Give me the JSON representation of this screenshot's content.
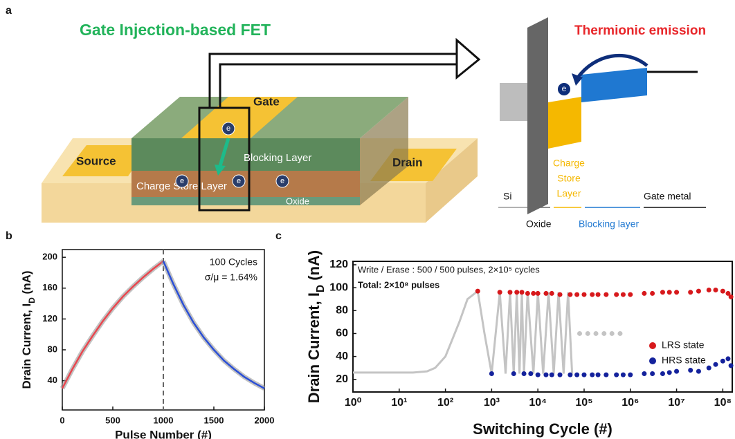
{
  "panel_labels": [
    "a",
    "b",
    "c"
  ],
  "device": {
    "title": "Gate Injection-based FET",
    "gate": "Gate",
    "source": "Source",
    "drain": "Drain",
    "blocking_layer": "Blocking Layer",
    "charge_store_layer": "Charge Store Layer",
    "oxide": "Oxide",
    "electrons": [
      "e",
      "e",
      "e",
      "e"
    ]
  },
  "band": {
    "title": "Thermionic emission",
    "electron": "e",
    "charge_store_layer": [
      "Charge",
      "Store",
      "Layer"
    ],
    "si": "Si",
    "oxide": "Oxide",
    "blocking_layer": "Blocking layer",
    "gate_metal": "Gate metal"
  },
  "chart_data": [
    {
      "type": "line",
      "xlabel": "Pulse Number (#)",
      "ylabel": [
        "Drain Current, I",
        "D",
        " (nA)"
      ],
      "annotations": [
        "100 Cycles",
        "σ/μ = 1.64%"
      ],
      "vline": 1000,
      "xlim": [
        0,
        2000
      ],
      "xticks": [
        0,
        500,
        1000,
        1500,
        2000
      ],
      "ylim": [
        2,
        210
      ],
      "yticks": [
        40,
        80,
        120,
        160,
        200
      ],
      "series": [
        {
          "color": "#e8474f",
          "x": [
            0,
            100,
            200,
            300,
            400,
            500,
            600,
            700,
            800,
            900,
            1000
          ],
          "values": [
            30,
            55,
            78,
            98,
            117,
            134,
            149,
            162,
            174,
            185,
            195
          ]
        },
        {
          "color": "#2b4fd6",
          "x": [
            1000,
            1100,
            1200,
            1300,
            1400,
            1500,
            1600,
            1700,
            1800,
            1900,
            2000
          ],
          "values": [
            195,
            165,
            138,
            115,
            96,
            80,
            66,
            55,
            45,
            37,
            30
          ]
        }
      ]
    },
    {
      "type": "scatter",
      "xlabel": "Switching Cycle (#)",
      "ylabel": [
        "Drain Current, I",
        "D",
        " (nA)"
      ],
      "annotations": [
        "Write / Erase : 500 / 500 pulses, 2×10⁵ cycles",
        "Total: 2×10⁸ pulses"
      ],
      "xscale": "log",
      "xlim": [
        1,
        160000000
      ],
      "xticks": [
        {
          "value": 1,
          "label": "10⁰"
        },
        {
          "value": 10,
          "label": "10¹"
        },
        {
          "value": 100,
          "label": "10²"
        },
        {
          "value": 1000,
          "label": "10³"
        },
        {
          "value": 10000,
          "label": "10⁴"
        },
        {
          "value": 100000,
          "label": "10⁵"
        },
        {
          "value": 1000000,
          "label": "10⁶"
        },
        {
          "value": 10000000,
          "label": "10⁷"
        },
        {
          "value": 100000000,
          "label": "10⁸"
        }
      ],
      "ylim": [
        9,
        123
      ],
      "yticks": [
        20,
        40,
        60,
        80,
        100,
        120
      ],
      "legend": "center right",
      "series": [
        {
          "mode": "line",
          "color": "#c4c4c4",
          "x": [
            1,
            2,
            3,
            5,
            10,
            20,
            40,
            60,
            100,
            200,
            300,
            500,
            700,
            1000,
            1500,
            2000,
            2500,
            3000,
            3500,
            4000,
            4500,
            5000,
            6000,
            8000,
            10000,
            13000,
            17000,
            22000,
            28000,
            36000,
            45000,
            55000
          ],
          "values": [
            26,
            26,
            26,
            26,
            26,
            26,
            27,
            30,
            40,
            70,
            90,
            97,
            60,
            25,
            96,
            25,
            96,
            25,
            96,
            25,
            96,
            25,
            96,
            25,
            96,
            25,
            96,
            25,
            96,
            25,
            96,
            25
          ]
        },
        {
          "mode": "markers",
          "color": "#c4c4c4",
          "x": [
            80000,
            120000,
            180000,
            270000,
            400000,
            600000
          ],
          "values": [
            60,
            60,
            60,
            60,
            60,
            60
          ]
        },
        {
          "name": "LRS state",
          "mode": "markers",
          "color": "#d7191c",
          "x": [
            500,
            1500,
            2500,
            3500,
            4500,
            6000,
            8000,
            10000,
            15000,
            20000,
            30000,
            50000,
            70000,
            100000,
            150000,
            200000,
            300000,
            500000,
            700000,
            1000000,
            2000000,
            3000000,
            5000000,
            7000000,
            10000000,
            20000000,
            30000000,
            50000000,
            70000000,
            100000000,
            130000000,
            150000000
          ],
          "values": [
            97,
            96,
            96,
            96,
            96,
            95,
            95,
            95,
            95,
            95,
            94,
            94,
            94,
            94,
            94,
            94,
            94,
            94,
            94,
            94,
            95,
            95,
            96,
            96,
            96,
            96,
            97,
            98,
            98,
            97,
            95,
            92
          ]
        },
        {
          "name": "HRS state",
          "mode": "markers",
          "color": "#14229c",
          "x": [
            1000,
            3000,
            5000,
            7000,
            10000,
            15000,
            20000,
            30000,
            50000,
            70000,
            100000,
            150000,
            200000,
            300000,
            500000,
            700000,
            1000000,
            2000000,
            3000000,
            5000000,
            7000000,
            10000000,
            20000000,
            30000000,
            50000000,
            70000000,
            100000000,
            130000000,
            150000000
          ],
          "values": [
            25,
            25,
            25,
            25,
            24,
            24,
            24,
            24,
            24,
            24,
            24,
            24,
            24,
            24,
            24,
            24,
            24,
            25,
            25,
            25,
            26,
            27,
            28,
            27,
            30,
            33,
            36,
            38,
            32
          ]
        }
      ]
    }
  ]
}
